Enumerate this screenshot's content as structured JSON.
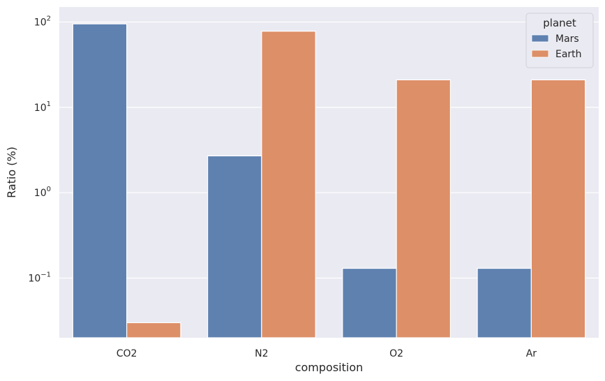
{
  "chart_data": {
    "type": "bar",
    "categories": [
      "CO2",
      "N2",
      "O2",
      "Ar"
    ],
    "series": [
      {
        "name": "Mars",
        "color": "#5e81b0",
        "values": [
          95,
          2.7,
          0.13,
          0.13
        ]
      },
      {
        "name": "Earth",
        "color": "#dd8f67",
        "values": [
          0.03,
          78,
          21,
          21
        ]
      }
    ],
    "xlabel": "composition",
    "ylabel": "Ratio (%)",
    "yscale": "log",
    "ylim": [
      0.02,
      150
    ],
    "yticks": [
      {
        "value": 0.1,
        "base": "10",
        "exp": "−1"
      },
      {
        "value": 1,
        "base": "10",
        "exp": "0"
      },
      {
        "value": 10,
        "base": "10",
        "exp": "1"
      },
      {
        "value": 100,
        "base": "10",
        "exp": "2"
      }
    ],
    "legend": {
      "title": "planet",
      "position": "top-right"
    },
    "grid": true,
    "background": "#eaeaf2"
  }
}
